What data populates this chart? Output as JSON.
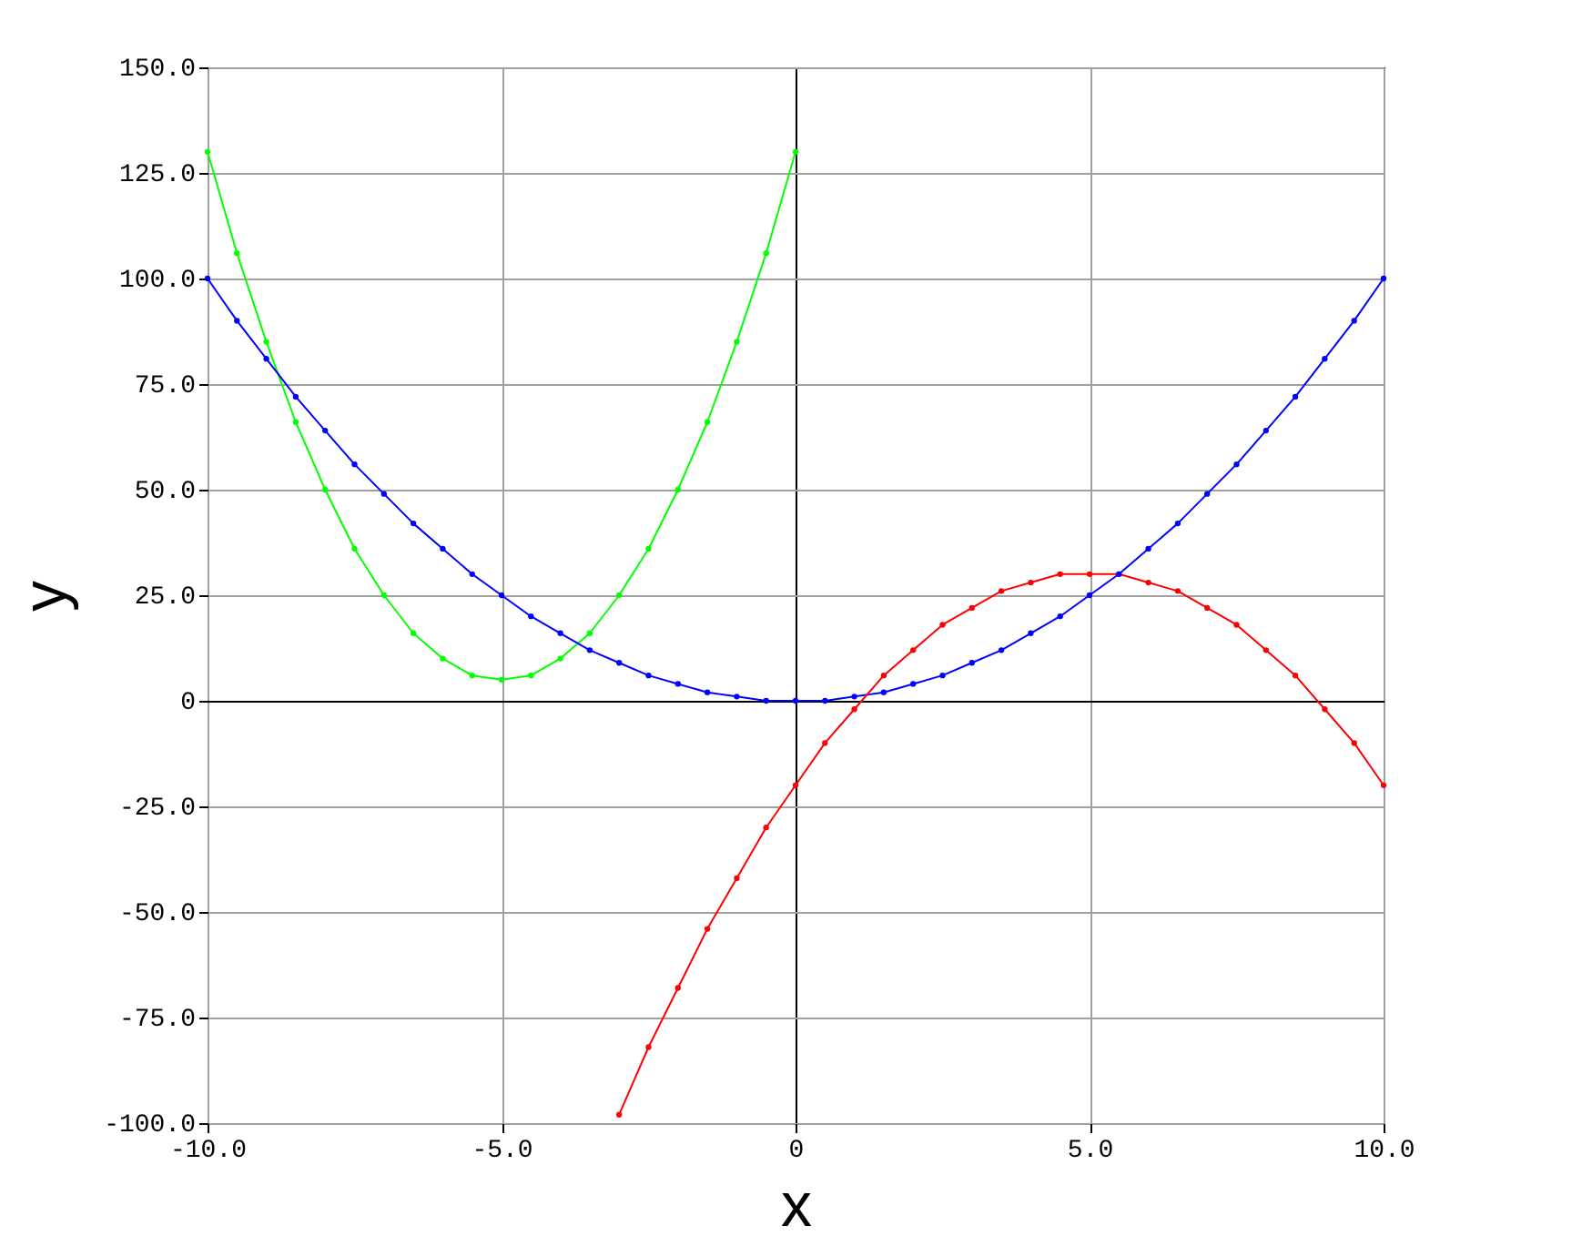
{
  "chart_data": {
    "type": "line",
    "xlabel": "x",
    "ylabel": "y",
    "xlim": [
      -10,
      10
    ],
    "ylim": [
      -100,
      150
    ],
    "xticks": [
      {
        "value": -10,
        "label": "-10.0"
      },
      {
        "value": -5,
        "label": "-5.0"
      },
      0,
      {
        "value": 5,
        "label": "5.0"
      },
      {
        "value": 10,
        "label": "10.0"
      }
    ],
    "yticks": [
      {
        "value": -100,
        "label": "-100.0"
      },
      {
        "value": -75,
        "label": "-75.0"
      },
      {
        "value": -50,
        "label": "-50.0"
      },
      {
        "value": -25,
        "label": "-25.0"
      },
      0,
      {
        "value": 25,
        "label": "25.0"
      },
      {
        "value": 50,
        "label": "50.0"
      },
      {
        "value": 75,
        "label": "75.0"
      },
      {
        "value": 100,
        "label": "100.0"
      },
      {
        "value": 125,
        "label": "125.0"
      },
      {
        "value": 150,
        "label": "150.0"
      }
    ],
    "grid": true,
    "marker": "circle",
    "line_style": "solid",
    "series": [
      {
        "color": "#00ff00",
        "x": [
          -10,
          -9.5,
          -9,
          -8.5,
          -8,
          -7.5,
          -7,
          -6.5,
          -6,
          -5.5,
          -5,
          -4.5,
          -4,
          -3.5,
          -3,
          -2.5,
          -2,
          -1.5,
          -1,
          -0.5,
          0
        ],
        "values": [
          130,
          106,
          85,
          66,
          50,
          36,
          25,
          16,
          10,
          6,
          5,
          6,
          10,
          16,
          25,
          36,
          50,
          66,
          85,
          106,
          130
        ]
      },
      {
        "color": "#0000ff",
        "x": [
          -10,
          -9.5,
          -9,
          -8.5,
          -8,
          -7.5,
          -7,
          -6.5,
          -6,
          -5.5,
          -5,
          -4.5,
          -4,
          -3.5,
          -3,
          -2.5,
          -2,
          -1.5,
          -1,
          -0.5,
          0,
          0.5,
          1,
          1.5,
          2,
          2.5,
          3,
          3.5,
          4,
          4.5,
          5,
          5.5,
          6,
          6.5,
          7,
          7.5,
          8,
          8.5,
          9,
          9.5,
          10
        ],
        "values": [
          100,
          90,
          81,
          72,
          64,
          56,
          49,
          42,
          36,
          30,
          25,
          20,
          16,
          12,
          9,
          6,
          4,
          2,
          1,
          0,
          0,
          0,
          1,
          2,
          4,
          6,
          9,
          12,
          16,
          20,
          25,
          30,
          36,
          42,
          49,
          56,
          64,
          72,
          81,
          90,
          100
        ]
      },
      {
        "color": "#ff0000",
        "x": [
          -3,
          -2.5,
          -2,
          -1.5,
          -1,
          -0.5,
          0,
          0.5,
          1,
          1.5,
          2,
          2.5,
          3,
          3.5,
          4,
          4.5,
          5,
          5.5,
          6,
          6.5,
          7,
          7.5,
          8,
          8.5,
          9,
          9.5,
          10
        ],
        "values": [
          -98,
          -82,
          -68,
          -54,
          -42,
          -30,
          -20,
          -10,
          -2,
          6,
          12,
          18,
          22,
          26,
          28,
          30,
          30,
          30,
          28,
          26,
          22,
          18,
          12,
          6,
          -2,
          -10,
          -20
        ]
      }
    ]
  }
}
